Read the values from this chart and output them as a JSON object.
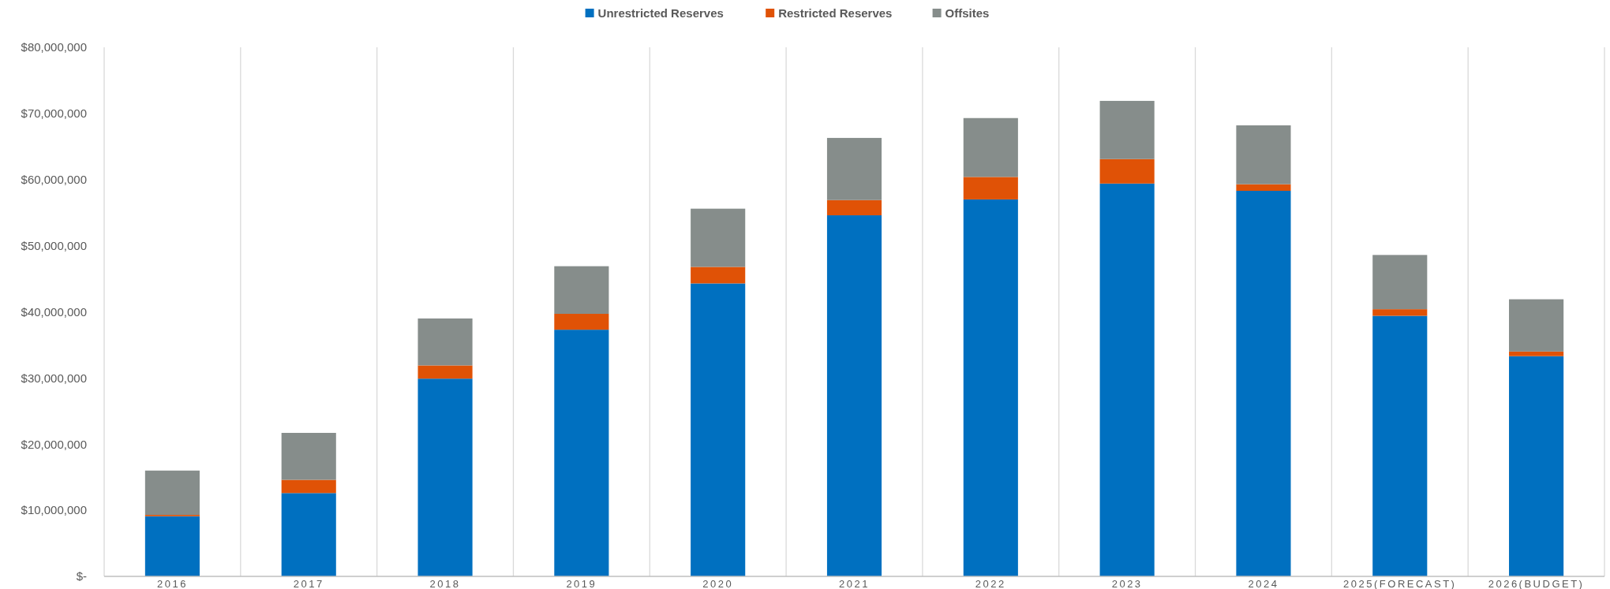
{
  "chart_data": {
    "type": "bar",
    "stacked": true,
    "categories": [
      "2016",
      "2017",
      "2018",
      "2019",
      "2020",
      "2021",
      "2022",
      "2023",
      "2024",
      "2025(FORECAST)",
      "2026(BUDGET)"
    ],
    "series": [
      {
        "name": "Unrestricted Reserves",
        "color": "#0070c0",
        "values": [
          9100000,
          12600000,
          29900000,
          37300000,
          44300000,
          54600000,
          57000000,
          59400000,
          58300000,
          39400000,
          33300000
        ]
      },
      {
        "name": "Restricted Reserves",
        "color": "#e05206",
        "values": [
          200000,
          2000000,
          2000000,
          2400000,
          2500000,
          2300000,
          3400000,
          3700000,
          1000000,
          1000000,
          700000
        ]
      },
      {
        "name": "Offsites",
        "color": "#868d8b",
        "values": [
          6700000,
          7100000,
          7100000,
          7200000,
          8800000,
          9400000,
          8900000,
          8800000,
          8900000,
          8200000,
          7900000
        ]
      }
    ],
    "ylim": [
      0,
      80000000
    ],
    "yticks": [
      {
        "value": 0,
        "label": "$-"
      },
      {
        "value": 10000000,
        "label": "$10,000,000"
      },
      {
        "value": 20000000,
        "label": "$20,000,000"
      },
      {
        "value": 30000000,
        "label": "$30,000,000"
      },
      {
        "value": 40000000,
        "label": "$40,000,000"
      },
      {
        "value": 50000000,
        "label": "$50,000,000"
      },
      {
        "value": 60000000,
        "label": "$60,000,000"
      },
      {
        "value": 70000000,
        "label": "$70,000,000"
      },
      {
        "value": 80000000,
        "label": "$80,000,000"
      }
    ],
    "grid": "x",
    "legend": "top"
  }
}
